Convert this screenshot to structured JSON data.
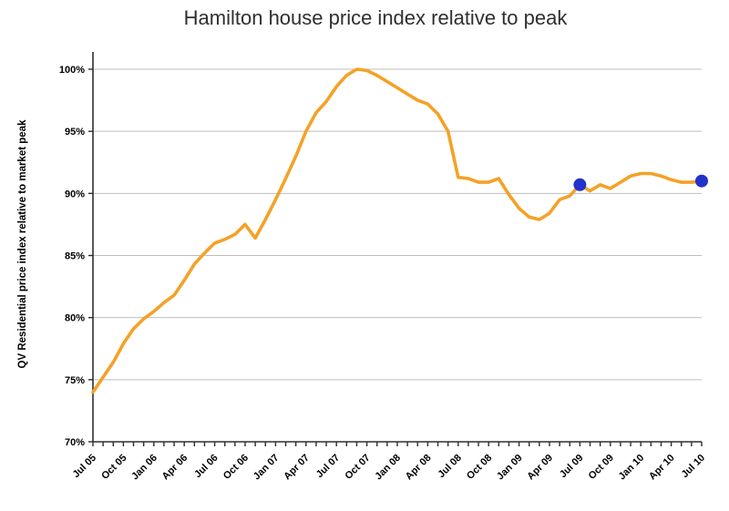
{
  "chart_data": {
    "type": "line",
    "title": "Hamilton house price index relative to peak",
    "ylabel": "QV Residential price index relative to market peak",
    "xlabel": "",
    "legend": "none",
    "grid": "horizontal",
    "x_label_every": 3,
    "ylim": [
      70,
      101.5
    ],
    "yticks": [
      {
        "value": 70,
        "label": "70%"
      },
      {
        "value": 75,
        "label": "75%"
      },
      {
        "value": 80,
        "label": "80%"
      },
      {
        "value": 85,
        "label": "85%"
      },
      {
        "value": 90,
        "label": "90%"
      },
      {
        "value": 95,
        "label": "95%"
      },
      {
        "value": 100,
        "label": "100%"
      }
    ],
    "x": [
      "Jul 05",
      "Aug 05",
      "Sep 05",
      "Oct 05",
      "Nov 05",
      "Dec 05",
      "Jan 06",
      "Feb 06",
      "Mar 06",
      "Apr 06",
      "May 06",
      "Jun 06",
      "Jul 06",
      "Aug 06",
      "Sep 06",
      "Oct 06",
      "Nov 06",
      "Dec 06",
      "Jan 07",
      "Feb 07",
      "Mar 07",
      "Apr 07",
      "May 07",
      "Jun 07",
      "Jul 07",
      "Aug 07",
      "Sep 07",
      "Oct 07",
      "Nov 07",
      "Dec 07",
      "Jan 08",
      "Feb 08",
      "Mar 08",
      "Apr 08",
      "May 08",
      "Jun 08",
      "Jul 08",
      "Aug 08",
      "Sep 08",
      "Oct 08",
      "Nov 08",
      "Dec 08",
      "Jan 09",
      "Feb 09",
      "Mar 09",
      "Apr 09",
      "May 09",
      "Jun 09",
      "Jul 09",
      "Aug 09",
      "Sep 09",
      "Oct 09",
      "Nov 09",
      "Dec 09",
      "Jan 10",
      "Feb 10",
      "Mar 10",
      "Apr 10",
      "May 10",
      "Jun 10",
      "Jul 10"
    ],
    "values": [
      74.0,
      75.2,
      76.4,
      77.9,
      79.1,
      79.9,
      80.5,
      81.2,
      81.8,
      83.0,
      84.3,
      85.2,
      86.0,
      86.3,
      86.7,
      87.5,
      86.4,
      87.9,
      89.5,
      91.2,
      93.0,
      95.0,
      96.5,
      97.4,
      98.6,
      99.5,
      100.0,
      99.9,
      99.5,
      99.0,
      98.5,
      98.0,
      97.5,
      97.2,
      96.4,
      95.0,
      91.3,
      91.2,
      90.9,
      90.9,
      91.2,
      89.9,
      88.8,
      88.1,
      87.9,
      88.4,
      89.5,
      89.8,
      90.7,
      90.2,
      90.7,
      90.4,
      90.9,
      91.4,
      91.6,
      91.6,
      91.4,
      91.1,
      90.9,
      90.9,
      91.0
    ],
    "highlights": [
      {
        "x": "Jul 09",
        "value": 90.7
      },
      {
        "x": "Jul 10",
        "value": 91.0
      }
    ],
    "line_color": "#F5A127",
    "highlight_color": "#2233CC",
    "grid_color": "#BEBEBE",
    "axis_color": "#2E2E2E"
  }
}
